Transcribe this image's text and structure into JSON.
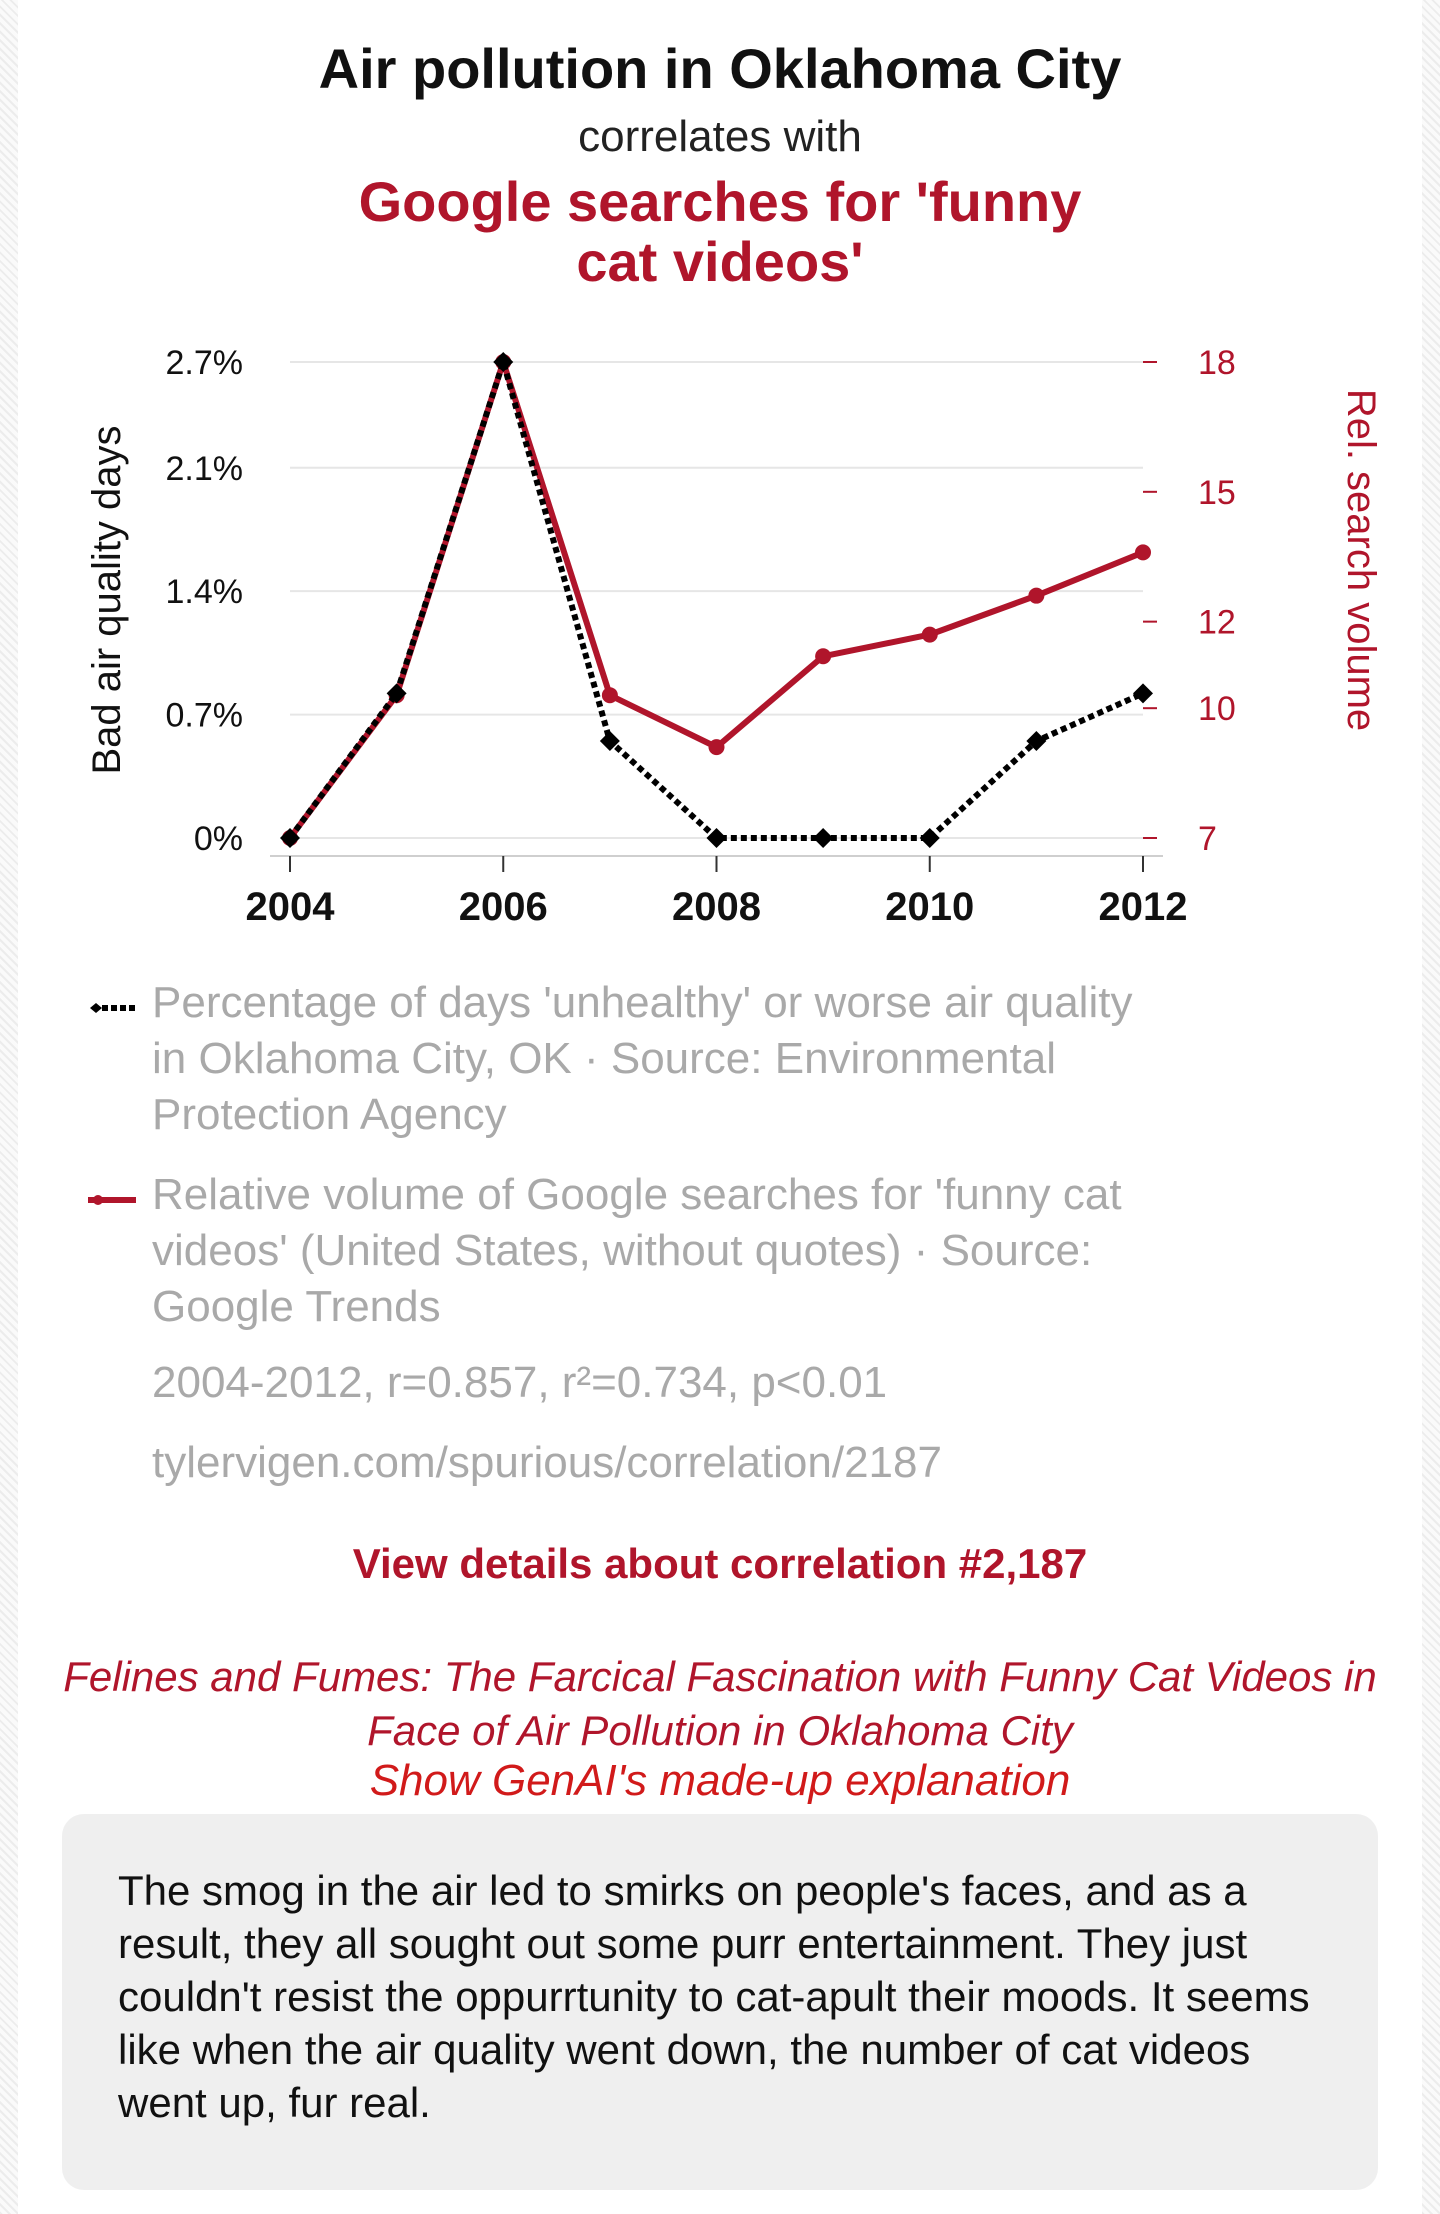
{
  "header": {
    "title": "Air pollution in Oklahoma City",
    "subtitle": "correlates with",
    "title2": "Google searches for 'funny cat videos'"
  },
  "colors": {
    "series1": "#000000",
    "series2": "#b0152b",
    "grid": "#e6e6e6"
  },
  "chart_data": {
    "type": "line",
    "x": [
      2004,
      2005,
      2006,
      2007,
      2008,
      2009,
      2010,
      2011,
      2012
    ],
    "x_ticks": [
      "2004",
      "2006",
      "2008",
      "2010",
      "2012"
    ],
    "xlim": [
      2004,
      2012
    ],
    "y_left": {
      "label": "Bad air quality days",
      "ticks": [
        "0%",
        "0.7%",
        "1.4%",
        "2.1%",
        "2.7%"
      ],
      "tick_values": [
        0,
        0.7,
        1.4,
        2.1,
        2.7
      ],
      "range": [
        0,
        2.7
      ]
    },
    "y_right": {
      "label": "Rel. search volume",
      "ticks": [
        "7",
        "10",
        "12",
        "15",
        "18"
      ],
      "tick_values": [
        7,
        10,
        12,
        15,
        18
      ],
      "range": [
        7,
        18
      ]
    },
    "series": [
      {
        "name": "Percentage of days 'unhealthy' or worse air quality in Oklahoma City, OK · Source: Environmental Protection Agency",
        "axis": "left",
        "style": "dashed",
        "marker": "diamond",
        "values": [
          0,
          0.82,
          2.7,
          0.55,
          0,
          0,
          0,
          0.55,
          0.82
        ]
      },
      {
        "name": "Relative volume of Google searches for 'funny cat videos' (United States, without quotes) · Source: Google Trends",
        "axis": "right",
        "style": "solid",
        "marker": "circle",
        "values": [
          7,
          10.3,
          18,
          10.3,
          9.1,
          11.2,
          11.7,
          12.6,
          13.6
        ]
      }
    ]
  },
  "stats": {
    "summary": "2004-2012, r=0.857, r²=0.734, p<0.01",
    "url": "tylervigen.com/spurious/correlation/2187"
  },
  "details_link": "View details about correlation #2,187",
  "paper_title": "Felines and Fumes: The Farcical Fascination with Funny Cat Videos in Face of Air Pollution in Oklahoma City",
  "genai_link": "Show GenAI's made-up explanation",
  "explanation": "The smog in the air led to smirks on people's faces, and as a result, they all sought out some purr entertainment. They just couldn't resist the oppurrtunity to cat-apult their moods. It seems like when the air quality went down, the number of cat videos went up, fur real."
}
